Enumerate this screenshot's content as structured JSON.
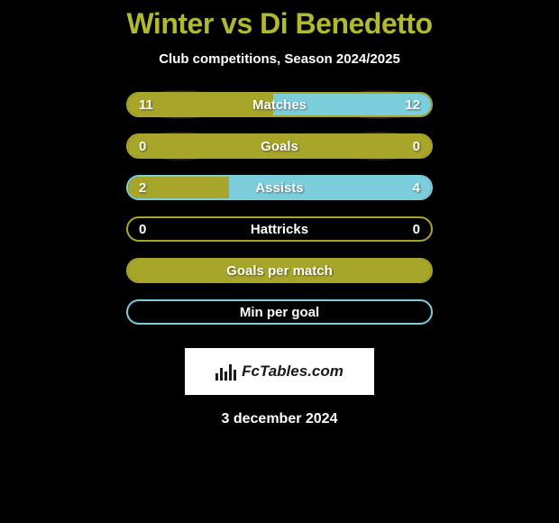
{
  "background_color": "#000000",
  "title": {
    "text": "Winter vs Di Benedetto",
    "color": "#b0b930",
    "fontsize": 32,
    "fontweight": 900
  },
  "subtitle": {
    "text": "Club competitions, Season 2024/2025",
    "color": "#ffffff",
    "fontsize": 15
  },
  "colors": {
    "olive": "#a8a62a",
    "olive_border": "#a8a62a",
    "cyan": "#7dcedd",
    "cyan_border": "#7dcedd",
    "oval": "rgba(255,255,255,0.12)"
  },
  "stats": [
    {
      "label": "Matches",
      "left_value": "11",
      "right_value": "12",
      "fill_type": "split",
      "left_pct": 47.8,
      "right_pct": 52.2,
      "left_fill_color": "#a8a62a",
      "right_fill_color": "#7dcedd",
      "border_color": "#a8a62a",
      "show_ovals": true
    },
    {
      "label": "Goals",
      "left_value": "0",
      "right_value": "0",
      "fill_type": "full",
      "fill_color": "#a8a62a",
      "border_color": "#a8a62a",
      "show_ovals": true
    },
    {
      "label": "Assists",
      "left_value": "2",
      "right_value": "4",
      "fill_type": "split",
      "left_pct": 33.3,
      "right_pct": 66.7,
      "left_fill_color": "#a8a62a",
      "right_fill_color": "#7dcedd",
      "border_color": "#7dcedd",
      "show_ovals": false
    },
    {
      "label": "Hattricks",
      "left_value": "0",
      "right_value": "0",
      "fill_type": "empty",
      "border_color": "#a8a62a",
      "show_ovals": false
    },
    {
      "label": "Goals per match",
      "left_value": "",
      "right_value": "",
      "fill_type": "full",
      "fill_color": "#a8a62a",
      "border_color": "#a8a62a",
      "show_ovals": false
    },
    {
      "label": "Min per goal",
      "left_value": "",
      "right_value": "",
      "fill_type": "empty",
      "border_color": "#7dcedd",
      "show_ovals": false
    }
  ],
  "badge": {
    "text": "FcTables.com",
    "background_color": "#ffffff",
    "text_color": "#1a1a1a"
  },
  "date": {
    "text": "3 december 2024",
    "color": "#ffffff",
    "fontsize": 16
  }
}
